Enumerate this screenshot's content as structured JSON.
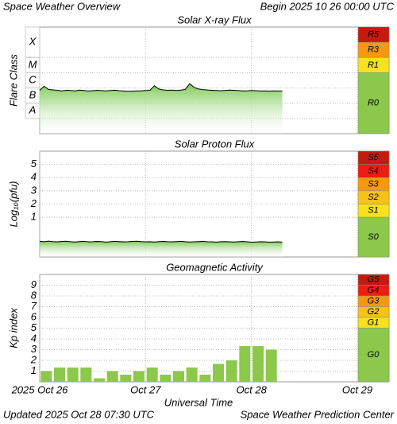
{
  "header": {
    "left": "Space Weather Overview",
    "right": "Begin 2025 10 26 00:00 UTC"
  },
  "footer": {
    "left": "Updated 2025 Oct 28 07:30 UTC",
    "right": "Space Weather Prediction Center"
  },
  "chart_data": [
    {
      "type": "line",
      "title": "Solar X-ray Flux",
      "y_label": "Flare Class",
      "ylog": true,
      "ylim": [
        1e-09,
        0.01
      ],
      "ytick_labels": "between",
      "yticks": [
        {
          "value": 1e-08,
          "label": "A"
        },
        {
          "value": 1e-07,
          "label": "B"
        },
        {
          "value": 1e-06,
          "label": "C"
        },
        {
          "value": 1e-05,
          "label": "M"
        },
        {
          "value": 0.0001,
          "label": "X"
        }
      ],
      "xlim": [
        0,
        72
      ],
      "xticks": [
        0,
        24,
        48,
        72
      ],
      "grid": true,
      "scale_bands": [
        {
          "label": "R5",
          "from": 0.001,
          "color": "#c41a12"
        },
        {
          "label": "R3",
          "from": 0.0001,
          "color": "#f39a12"
        },
        {
          "label": "R1",
          "from": 1e-05,
          "color": "#f5e11e"
        },
        {
          "label": "R0",
          "color": "#8cc84b"
        }
      ],
      "x": [
        0,
        1,
        2,
        3,
        4,
        5,
        6,
        7,
        8,
        9,
        10,
        11,
        12,
        13,
        14,
        15,
        16,
        17,
        18,
        19,
        20,
        21,
        22,
        23,
        24,
        25,
        26,
        27,
        28,
        29,
        30,
        31,
        32,
        33,
        34,
        35,
        36,
        37,
        38,
        39,
        40,
        41,
        42,
        43,
        44,
        45,
        46,
        47,
        48,
        49,
        50,
        51,
        52,
        53,
        54,
        55
      ],
      "series": [
        {
          "color": "#000000",
          "fill": "#6cc23f",
          "values": [
            7e-07,
            1.3e-06,
            8e-07,
            7.5e-07,
            7e-07,
            6.5e-07,
            7e-07,
            6.8e-07,
            6.5e-07,
            7.2e-07,
            6.8e-07,
            6.3e-07,
            6.6e-07,
            7e-07,
            6.7e-07,
            6.4e-07,
            6.9e-07,
            7.1e-07,
            6.6e-07,
            6.3e-07,
            6e-07,
            6.2e-07,
            6.5e-07,
            6.4e-07,
            6.8e-07,
            7e-07,
            1.4e-06,
            8.5e-07,
            7.5e-07,
            7e-07,
            7.2e-07,
            6.9e-07,
            7.3e-07,
            8e-07,
            1.9e-06,
            1.1e-06,
            8.5e-07,
            7.8e-07,
            7.4e-07,
            7e-07,
            6.8e-07,
            6.6e-07,
            6.9e-07,
            7.2e-07,
            7e-07,
            6.7e-07,
            6.4e-07,
            6.5e-07,
            6.8e-07,
            6.6e-07,
            6.3e-07,
            6.5e-07,
            6.2e-07,
            6.4e-07,
            6.3e-07,
            6.5e-07
          ]
        }
      ]
    },
    {
      "type": "line",
      "title": "Solar Proton Flux",
      "y_label": "Log₁₀(pfu)",
      "ylim": [
        -2,
        6
      ],
      "yticks": [
        1,
        2,
        3,
        4,
        5
      ],
      "xlim": [
        0,
        72
      ],
      "xticks": [
        0,
        24,
        48,
        72
      ],
      "grid": true,
      "scale_bands": [
        {
          "label": "S5",
          "from": 5,
          "color": "#c41a12"
        },
        {
          "label": "S4",
          "from": 4,
          "color": "#ee1c12"
        },
        {
          "label": "S3",
          "from": 3,
          "color": "#f39a12"
        },
        {
          "label": "S2",
          "from": 2,
          "color": "#f6c21a"
        },
        {
          "label": "S1",
          "from": 1,
          "color": "#f5e11e"
        },
        {
          "label": "S0",
          "color": "#8cc84b"
        }
      ],
      "x": [
        0,
        1,
        2,
        3,
        4,
        5,
        6,
        7,
        8,
        9,
        10,
        11,
        12,
        13,
        14,
        15,
        16,
        17,
        18,
        19,
        20,
        21,
        22,
        23,
        24,
        25,
        26,
        27,
        28,
        29,
        30,
        31,
        32,
        33,
        34,
        35,
        36,
        37,
        38,
        39,
        40,
        41,
        42,
        43,
        44,
        45,
        46,
        47,
        48,
        49,
        50,
        51,
        52,
        53,
        54,
        55
      ],
      "series": [
        {
          "color": "#000000",
          "fill": "#6cc23f",
          "values": [
            -0.82,
            -0.85,
            -0.8,
            -0.84,
            -0.86,
            -0.83,
            -0.81,
            -0.85,
            -0.87,
            -0.84,
            -0.82,
            -0.86,
            -0.85,
            -0.83,
            -0.84,
            -0.88,
            -0.85,
            -0.82,
            -0.84,
            -0.86,
            -0.85,
            -0.83,
            -0.81,
            -0.84,
            -0.86,
            -0.85,
            -0.87,
            -0.84,
            -0.83,
            -0.85,
            -0.86,
            -0.84,
            -0.82,
            -0.85,
            -0.87,
            -0.86,
            -0.84,
            -0.83,
            -0.85,
            -0.86,
            -0.88,
            -0.85,
            -0.84,
            -0.86,
            -0.87,
            -0.85,
            -0.83,
            -0.86,
            -0.88,
            -0.87,
            -0.85,
            -0.86,
            -0.88,
            -0.87,
            -0.86,
            -0.88
          ]
        }
      ]
    },
    {
      "type": "bar",
      "title": "Geomagnetic Activity",
      "y_label": "Kp index",
      "x_label": "Universal Time",
      "ylim": [
        0,
        10
      ],
      "yticks": [
        1,
        2,
        3,
        4,
        5,
        6,
        7,
        8,
        9
      ],
      "xlim": [
        0,
        72
      ],
      "xticks": [
        {
          "value": 0,
          "label": "2025 Oct 26"
        },
        {
          "value": 24,
          "label": "Oct 27"
        },
        {
          "value": 48,
          "label": "Oct 28"
        },
        {
          "value": 72,
          "label": "Oct 29"
        }
      ],
      "grid": true,
      "scale_bands": [
        {
          "label": "G5",
          "from": 9,
          "color": "#c41a12"
        },
        {
          "label": "G4",
          "from": 8,
          "color": "#ee1c12"
        },
        {
          "label": "G3",
          "from": 7,
          "color": "#f39a12"
        },
        {
          "label": "G2",
          "from": 6,
          "color": "#f6c21a"
        },
        {
          "label": "G1",
          "from": 5,
          "color": "#f5e11e"
        },
        {
          "label": "G0",
          "color": "#8cc84b"
        }
      ],
      "x": [
        1.5,
        4.5,
        7.5,
        10.5,
        13.5,
        16.5,
        19.5,
        22.5,
        25.5,
        28.5,
        31.5,
        34.5,
        37.5,
        40.5,
        43.5,
        46.5,
        49.5,
        52.5
      ],
      "series": [
        {
          "color": "#8cc84b",
          "values": [
            1,
            1.33,
            1.33,
            1.33,
            0.33,
            1,
            0.67,
            1,
            1.33,
            0.67,
            1,
            1.33,
            0.67,
            1.67,
            2,
            3.33,
            3.33,
            3
          ]
        }
      ]
    }
  ]
}
